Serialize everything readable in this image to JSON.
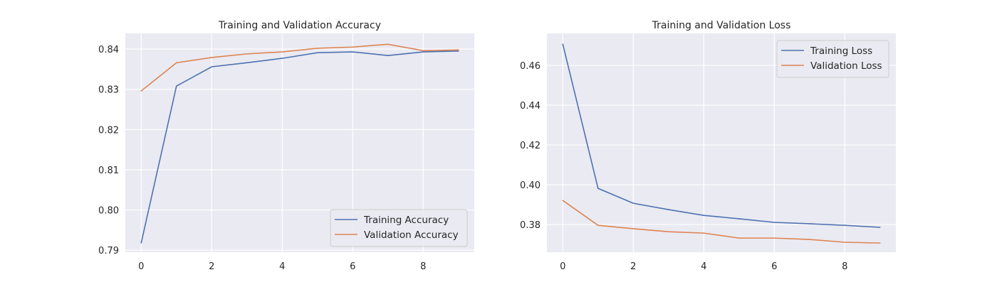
{
  "colors": {
    "background": "#eaeaf2",
    "grid": "#ffffff",
    "training": "#4c72b0",
    "validation": "#dd8452"
  },
  "chart_data": [
    {
      "type": "line",
      "title": "Training and Validation Accuracy",
      "xlabel": "",
      "ylabel": "",
      "x": [
        0,
        1,
        2,
        3,
        4,
        5,
        6,
        7,
        8,
        9
      ],
      "xlim": [
        -0.45,
        9.45
      ],
      "ylim": [
        0.7895,
        0.8439
      ],
      "xticks": [
        0,
        2,
        4,
        6,
        8
      ],
      "xtick_labels": [
        "0",
        "2",
        "4",
        "6",
        "8"
      ],
      "yticks": [
        0.79,
        0.8,
        0.81,
        0.82,
        0.83,
        0.84
      ],
      "ytick_labels": [
        "0.79",
        "0.80",
        "0.81",
        "0.82",
        "0.83",
        "0.84"
      ],
      "grid": true,
      "legend_position": "lower-right",
      "series": [
        {
          "name": "Training Accuracy",
          "values": [
            0.7918,
            0.8308,
            0.8356,
            0.8366,
            0.8377,
            0.8391,
            0.8393,
            0.8384,
            0.8393,
            0.8395
          ]
        },
        {
          "name": "Validation Accuracy",
          "values": [
            0.8296,
            0.8366,
            0.8379,
            0.8388,
            0.8393,
            0.8402,
            0.8405,
            0.8412,
            0.8396,
            0.8398
          ]
        }
      ]
    },
    {
      "type": "line",
      "title": "Training and Validation Loss",
      "xlabel": "",
      "ylabel": "",
      "x": [
        0,
        1,
        2,
        3,
        4,
        5,
        6,
        7,
        8,
        9
      ],
      "xlim": [
        -0.45,
        9.45
      ],
      "ylim": [
        0.3661,
        0.4761
      ],
      "xticks": [
        0,
        2,
        4,
        6,
        8
      ],
      "xtick_labels": [
        "0",
        "2",
        "4",
        "6",
        "8"
      ],
      "yticks": [
        0.38,
        0.4,
        0.42,
        0.44,
        0.46
      ],
      "ytick_labels": [
        "0.38",
        "0.40",
        "0.42",
        "0.44",
        "0.46"
      ],
      "grid": true,
      "legend_position": "upper-right",
      "series": [
        {
          "name": "Training Loss",
          "values": [
            0.4707,
            0.3982,
            0.3907,
            0.3875,
            0.3846,
            0.3829,
            0.3811,
            0.3804,
            0.3796,
            0.3786
          ]
        },
        {
          "name": "Validation Loss",
          "values": [
            0.3921,
            0.3796,
            0.3779,
            0.3764,
            0.3757,
            0.3732,
            0.3732,
            0.3725,
            0.3711,
            0.3707
          ]
        }
      ]
    }
  ]
}
